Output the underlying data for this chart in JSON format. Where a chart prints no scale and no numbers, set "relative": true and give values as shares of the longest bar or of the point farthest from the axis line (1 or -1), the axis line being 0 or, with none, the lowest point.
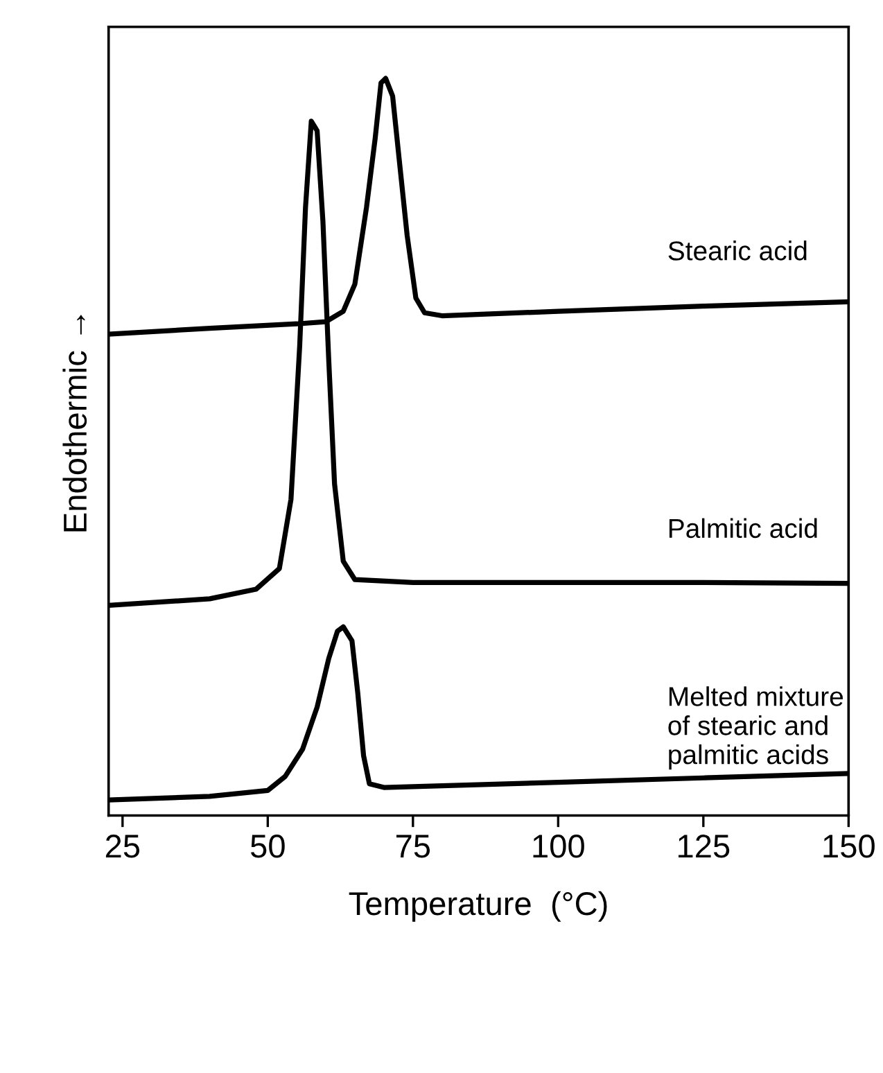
{
  "chart_data": {
    "type": "line",
    "relative": true,
    "xlabel": "Temperature  (°C)",
    "ylabel": "Endothermic →",
    "xlim": [
      22.6,
      150
    ],
    "xticks": [
      25,
      50,
      75,
      100,
      125,
      150
    ],
    "tick_labels": "x",
    "grid": false,
    "marker": "none",
    "line_style": "solid",
    "series": [
      {
        "color": "#000000",
        "x": [
          22.6,
          40,
          55,
          60,
          63,
          65,
          67,
          68.5,
          69.5,
          70.3,
          71.5,
          72.5,
          74,
          75.5,
          77,
          80,
          100,
          125,
          150
        ],
        "values": [
          0.653,
          0.661,
          0.667,
          0.67,
          0.684,
          0.721,
          0.825,
          0.919,
          0.994,
          1.0,
          0.976,
          0.9,
          0.787,
          0.702,
          0.682,
          0.678,
          0.684,
          0.691,
          0.697
        ]
      },
      {
        "color": "#000000",
        "x": [
          22.6,
          40,
          48,
          52,
          54,
          55.5,
          56.5,
          57.5,
          58.5,
          59.5,
          60.5,
          61.5,
          63,
          65,
          75,
          100,
          125,
          150
        ],
        "values": [
          0.285,
          0.294,
          0.307,
          0.335,
          0.429,
          0.637,
          0.825,
          0.942,
          0.929,
          0.806,
          0.618,
          0.45,
          0.345,
          0.32,
          0.316,
          0.316,
          0.316,
          0.315
        ]
      },
      {
        "color": "#000000",
        "x": [
          22.6,
          40,
          50,
          53,
          56,
          58.5,
          60.5,
          62,
          63,
          64.5,
          65.5,
          66.5,
          67.5,
          70,
          100,
          125,
          150
        ],
        "values": [
          0.021,
          0.026,
          0.034,
          0.053,
          0.09,
          0.147,
          0.213,
          0.25,
          0.256,
          0.237,
          0.166,
          0.081,
          0.043,
          0.038,
          0.045,
          0.051,
          0.057
        ]
      }
    ],
    "annotations": [
      "Stearic acid",
      "Palmitic acid",
      "Melted mixture\nof stearic and\npalmitic acids"
    ]
  }
}
